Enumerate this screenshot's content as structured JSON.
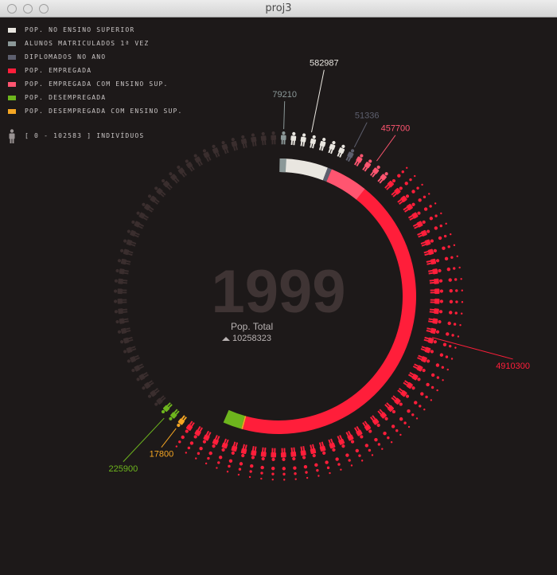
{
  "window": {
    "title": "proj3"
  },
  "legend": {
    "items": [
      {
        "label": "POP. NO ENSINO SUPERIOR",
        "color": "#e9e6e0"
      },
      {
        "label": "ALUNOS MATRICULADOS 1ª VEZ",
        "color": "#8b9898"
      },
      {
        "label": "DIPLOMADOS NO ANO",
        "color": "#5d5f6e"
      },
      {
        "label": "POP. EMPREGADA",
        "color": "#ff1e3a"
      },
      {
        "label": "POP. EMPREGADA COM ENSINO SUP.",
        "color": "#ff5570"
      },
      {
        "label": "POP. DESEMPREGADA",
        "color": "#6db51d"
      },
      {
        "label": "POP. DESEMPREGADA COM ENSINO SUP.",
        "color": "#f5a623"
      }
    ],
    "unit_label": "[ 0 - 102583 ]  INDIVÍDUOS"
  },
  "chart_data": {
    "type": "radial",
    "year": "1999",
    "total_label": "Pop. Total",
    "total_value": "10258323",
    "unit_per_icon": 102583,
    "series": [
      {
        "name": "POP. NO ENSINO SUPERIOR",
        "value": 582987,
        "label": "582987",
        "color": "#e9e6e0"
      },
      {
        "name": "ALUNOS MATRICULADOS 1ª VEZ",
        "value": 79210,
        "label": "79210",
        "color": "#8b9898"
      },
      {
        "name": "DIPLOMADOS NO ANO",
        "value": 51336,
        "label": "51336",
        "color": "#5d5f6e"
      },
      {
        "name": "POP. EMPREGADA",
        "value": 4910300,
        "label": "4910300",
        "color": "#ff1e3a"
      },
      {
        "name": "POP. EMPREGADA COM ENSINO SUP.",
        "value": 457700,
        "label": "457700",
        "color": "#ff5570"
      },
      {
        "name": "POP. DESEMPREGADA",
        "value": 225900,
        "label": "225900",
        "color": "#6db51d"
      },
      {
        "name": "POP. DESEMPREGADA COM ENSINO SUP.",
        "value": 17800,
        "label": "17800",
        "color": "#f5a623"
      }
    ]
  }
}
